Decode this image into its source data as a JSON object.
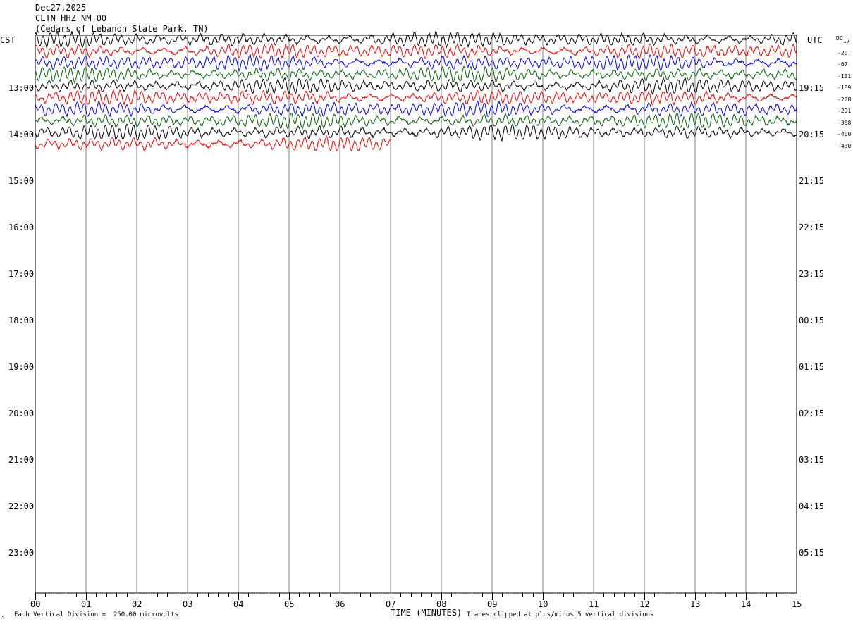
{
  "header": {
    "date": "Dec27,2025",
    "station": "CLTN HHZ NM 00",
    "location": "(Cedars of Lebanon State Park, TN)"
  },
  "labels": {
    "left_tz": "CST",
    "right_tz": "UTC",
    "dc_label": "DC",
    "x_axis_title": "TIME (MINUTES)",
    "scale_note": "Each Vertical Division =  250.00 microvolts",
    "clip_note": "Traces clipped at plus/minus 5 vertical divisions",
    "corner_mark": "^"
  },
  "chart_data": {
    "type": "line",
    "title": "",
    "xlabel": "TIME (MINUTES)",
    "xlim": [
      0,
      15
    ],
    "x_ticks": [
      "00",
      "01",
      "02",
      "03",
      "04",
      "05",
      "06",
      "07",
      "08",
      "09",
      "10",
      "11",
      "12",
      "13",
      "14",
      "15"
    ],
    "left_hour_labels": [
      "13:00",
      "14:00",
      "15:00",
      "16:00",
      "17:00",
      "18:00",
      "19:00",
      "20:00",
      "21:00",
      "22:00",
      "23:00"
    ],
    "right_hour_labels": [
      "19:15",
      "20:15",
      "21:15",
      "22:15",
      "23:15",
      "00:15",
      "01:15",
      "02:15",
      "03:15",
      "04:15",
      "05:15"
    ],
    "dc_offsets": [
      "17",
      "-20",
      "-67",
      "-131",
      "-189",
      "-228",
      "-291",
      "-368",
      "-400",
      "-430"
    ],
    "trace_colors": [
      "#000000",
      "#ff0000",
      "#0000ff",
      "#006400"
    ],
    "trace_count": 10,
    "last_trace_end_minute": 7,
    "trace_amplitude_divisions_max": 5
  }
}
